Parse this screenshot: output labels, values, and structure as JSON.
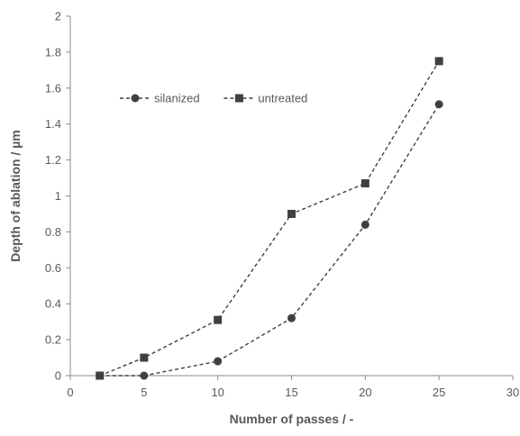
{
  "chart_data": {
    "type": "line",
    "title": "",
    "xlabel": "Number of passes / -",
    "ylabel": "Depth of ablation / µm",
    "xlim": [
      0,
      30
    ],
    "ylim": [
      0,
      2
    ],
    "xticks": [
      0,
      5,
      10,
      15,
      20,
      25,
      30
    ],
    "xtick_labels": [
      "0",
      "5",
      "10",
      "15",
      "20",
      "25",
      "30"
    ],
    "yticks": [
      0,
      0.2,
      0.4,
      0.6,
      0.8,
      1.0,
      1.2,
      1.4,
      1.6,
      1.8,
      2.0
    ],
    "ytick_labels": [
      "0",
      "0.2",
      "0.4",
      "0.6",
      "0.8",
      "1",
      "1.2",
      "1.4",
      "1.6",
      "1.8",
      "2"
    ],
    "grid": false,
    "legend_position": "top-left",
    "line_style": "dashed",
    "color": "#404040",
    "series": [
      {
        "name": "silanized",
        "marker": "circle",
        "x": [
          2,
          5,
          10,
          15,
          20,
          25
        ],
        "y": [
          0,
          0,
          0.08,
          0.32,
          0.84,
          1.51
        ]
      },
      {
        "name": "untreated",
        "marker": "square",
        "x": [
          2,
          5,
          10,
          15,
          20,
          25
        ],
        "y": [
          0,
          0.1,
          0.31,
          0.9,
          1.07,
          1.75
        ]
      }
    ]
  }
}
